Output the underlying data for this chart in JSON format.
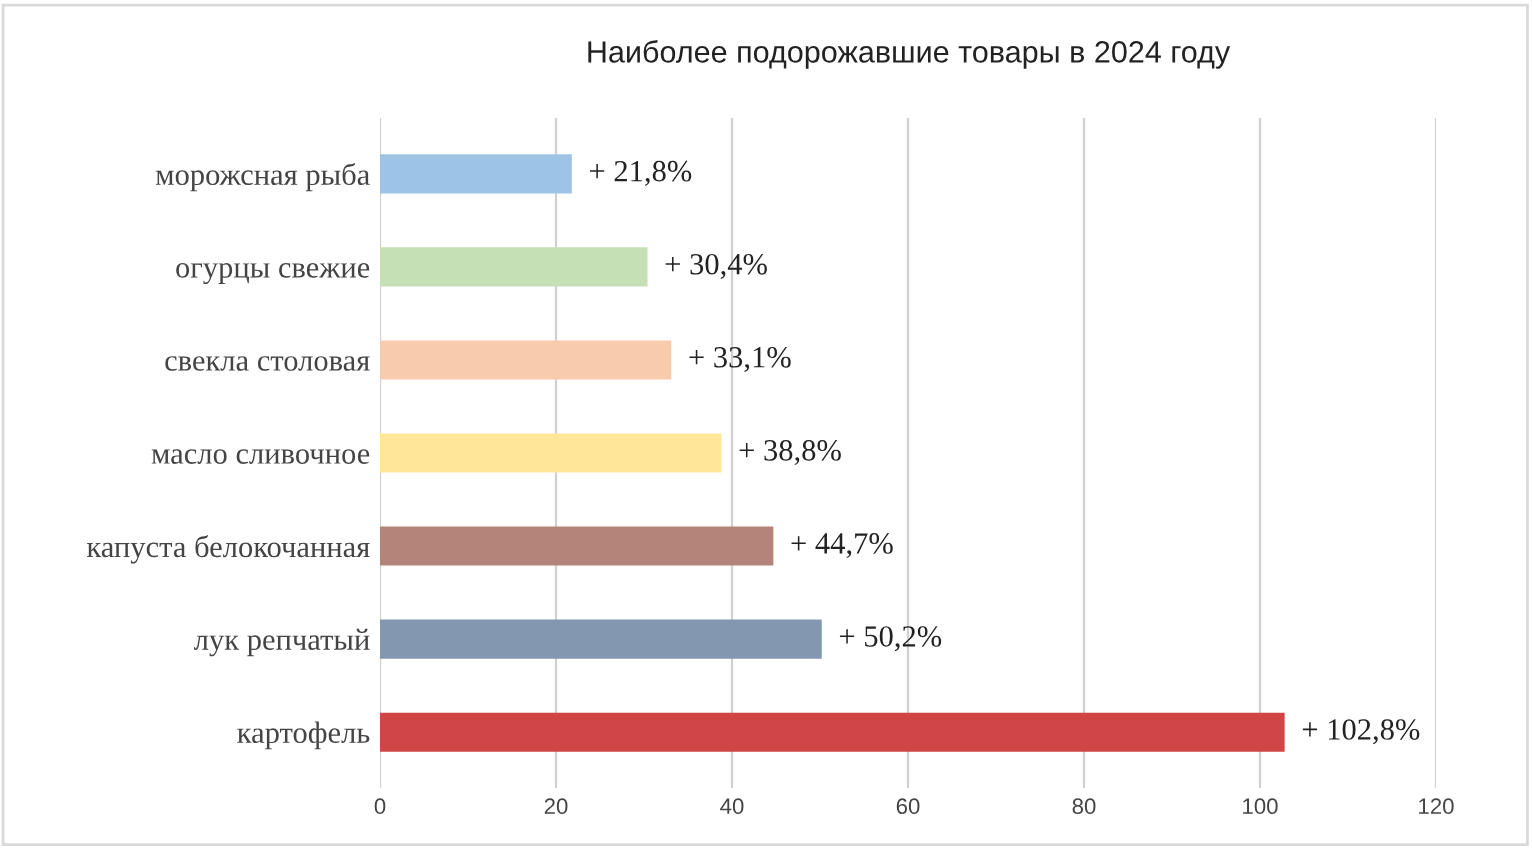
{
  "chart_data": {
    "type": "bar",
    "orientation": "horizontal",
    "title": "Наиболее подорожавшие товары в 2024 году",
    "categories": [
      "морожсная рыба",
      "огурцы свежие",
      "свекла столовая",
      "масло сливочное",
      "капуста белокочанная",
      "лук репчатый",
      "картофель"
    ],
    "values": [
      21.8,
      30.4,
      33.1,
      38.8,
      44.7,
      50.2,
      102.8
    ],
    "colors": [
      "#9dc3e6",
      "#c5e0b4",
      "#f8cbad",
      "#ffe699",
      "#b4837a",
      "#8497b0",
      "#d04545"
    ],
    "value_labels": [
      "+ 21,8%",
      "+ 30,4%",
      "+ 33,1%",
      "+ 38,8%",
      "+ 44,7%",
      "+ 50,2%",
      "+ 102,8%"
    ],
    "xlim": [
      0,
      120
    ],
    "xticks": [
      0,
      20,
      40,
      60,
      80,
      100,
      120
    ],
    "grid": "x"
  }
}
